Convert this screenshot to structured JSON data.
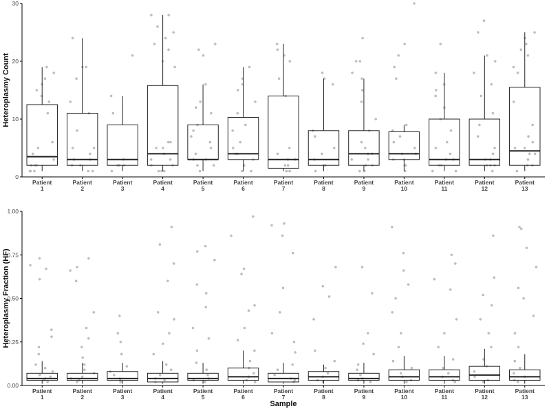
{
  "chart_data": [
    {
      "type": "box",
      "ylabel": "Heteroplasmy Count",
      "xlabel": "",
      "ylim": [
        0,
        30
      ],
      "yticks": [
        0,
        10,
        20,
        30
      ],
      "categories": [
        "Patient\n1",
        "Patient\n2",
        "Patient\n3",
        "Patient\n4",
        "Patient\n5",
        "Patient\n6",
        "Patient\n7",
        "Patient\n8",
        "Patient\n9",
        "Patient\n10",
        "Patient\n11",
        "Patient\n12",
        "Patient\n13"
      ],
      "boxes": [
        {
          "q1": 2,
          "median": 3.5,
          "q3": 12.5,
          "whisker_low": 1,
          "whisker_high": 19,
          "points": [
            1,
            1,
            1,
            2,
            2,
            2,
            3,
            4,
            5,
            6,
            11,
            13,
            14,
            15,
            16,
            17,
            18,
            19
          ]
        },
        {
          "q1": 2,
          "median": 3,
          "q3": 11,
          "whisker_low": 1,
          "whisker_high": 24,
          "points": [
            1,
            1,
            2,
            2,
            3,
            3,
            4,
            5,
            5,
            8,
            11,
            13,
            17,
            19,
            19,
            24
          ]
        },
        {
          "q1": 2,
          "median": 3,
          "q3": 9,
          "whisker_low": 1,
          "whisker_high": 14,
          "points": [
            1,
            2,
            2,
            2,
            3,
            11,
            14,
            21
          ]
        },
        {
          "q1": 2,
          "median": 4,
          "q3": 15.8,
          "whisker_low": 1,
          "whisker_high": 28,
          "points": [
            1,
            1,
            1,
            2,
            2,
            3,
            3,
            4,
            5,
            5,
            6,
            6,
            19,
            20,
            22,
            23,
            24,
            25,
            26,
            28,
            28
          ]
        },
        {
          "q1": 3,
          "median": 3,
          "q3": 9,
          "whisker_low": 1,
          "whisker_high": 16,
          "points": [
            1,
            2,
            2,
            3,
            3,
            4,
            5,
            6,
            7,
            8,
            9,
            11,
            12,
            13,
            16,
            21,
            22,
            23
          ]
        },
        {
          "q1": 3,
          "median": 4,
          "q3": 10.3,
          "whisker_low": 1,
          "whisker_high": 19,
          "points": [
            1,
            1,
            2,
            3,
            4,
            4,
            5,
            6,
            8,
            9,
            11,
            13,
            15,
            16,
            17,
            19
          ]
        },
        {
          "q1": 1.5,
          "median": 3,
          "q3": 14,
          "whisker_low": 1,
          "whisker_high": 23,
          "points": [
            1,
            1,
            2,
            2,
            3,
            3,
            4,
            5,
            14,
            17,
            20,
            21,
            22,
            23
          ]
        },
        {
          "q1": 2,
          "median": 3,
          "q3": 8,
          "whisker_low": 1,
          "whisker_high": 17,
          "points": [
            1,
            2,
            2,
            3,
            4,
            5,
            7,
            8,
            16,
            17,
            18
          ]
        },
        {
          "q1": 2,
          "median": 4,
          "q3": 8,
          "whisker_low": 1,
          "whisker_high": 17,
          "points": [
            1,
            1,
            2,
            2,
            3,
            3,
            4,
            4,
            5,
            6,
            8,
            10,
            13,
            15,
            17,
            18,
            20,
            20,
            24
          ]
        },
        {
          "q1": 3,
          "median": 4,
          "q3": 7.8,
          "whisker_low": 1,
          "whisker_high": 9,
          "points": [
            1,
            2,
            2,
            3,
            3,
            4,
            4,
            5,
            6,
            7,
            8,
            9,
            17,
            19,
            21,
            23,
            30
          ]
        },
        {
          "q1": 2,
          "median": 3,
          "q3": 10,
          "whisker_low": 1,
          "whisker_high": 18,
          "points": [
            1,
            1,
            2,
            2,
            3,
            3,
            4,
            5,
            6,
            8,
            10,
            12,
            14,
            15,
            16,
            18,
            23
          ]
        },
        {
          "q1": 2,
          "median": 3,
          "q3": 10,
          "whisker_low": 1,
          "whisker_high": 21,
          "points": [
            1,
            2,
            2,
            2,
            3,
            3,
            4,
            5,
            7,
            9,
            11,
            14,
            16,
            18,
            20,
            21,
            25,
            27
          ]
        },
        {
          "q1": 2,
          "median": 4.5,
          "q3": 15.5,
          "whisker_low": 1,
          "whisker_high": 25,
          "points": [
            1,
            2,
            2,
            3,
            3,
            4,
            4,
            5,
            5,
            6,
            7,
            9,
            13,
            18,
            19,
            21,
            22,
            23,
            24,
            25
          ]
        }
      ]
    },
    {
      "type": "box",
      "ylabel": "Heteroplasmy Fraction (HF)",
      "xlabel": "Sample",
      "ylim": [
        0,
        1.0
      ],
      "yticks": [
        "0.00",
        "0.25",
        "0.50",
        "0.75",
        "1.00"
      ],
      "categories": [
        "Patient\n1",
        "Patient\n2",
        "Patient\n3",
        "Patient\n4",
        "Patient\n5",
        "Patient\n6",
        "Patient\n7",
        "Patient\n8",
        "Patient\n9",
        "Patient\n10",
        "Patient\n11",
        "Patient\n12",
        "Patient\n13"
      ],
      "boxes": [
        {
          "q1": 0.03,
          "median": 0.04,
          "q3": 0.07,
          "whisker_low": 0.01,
          "whisker_high": 0.14,
          "points": [
            0.02,
            0.03,
            0.04,
            0.05,
            0.06,
            0.08,
            0.1,
            0.12,
            0.18,
            0.22,
            0.28,
            0.32,
            0.61,
            0.67,
            0.69,
            0.73
          ]
        },
        {
          "q1": 0.03,
          "median": 0.04,
          "q3": 0.07,
          "whisker_low": 0.01,
          "whisker_high": 0.13,
          "points": [
            0.02,
            0.03,
            0.04,
            0.05,
            0.07,
            0.09,
            0.12,
            0.16,
            0.22,
            0.27,
            0.33,
            0.42,
            0.6,
            0.66,
            0.68,
            0.73
          ]
        },
        {
          "q1": 0.03,
          "median": 0.04,
          "q3": 0.08,
          "whisker_low": 0.01,
          "whisker_high": 0.13,
          "points": [
            0.02,
            0.03,
            0.04,
            0.06,
            0.08,
            0.11,
            0.18,
            0.25,
            0.3,
            0.4
          ]
        },
        {
          "q1": 0.02,
          "median": 0.04,
          "q3": 0.07,
          "whisker_low": 0.01,
          "whisker_high": 0.14,
          "points": [
            0.02,
            0.03,
            0.04,
            0.06,
            0.09,
            0.12,
            0.18,
            0.24,
            0.3,
            0.38,
            0.42,
            0.6,
            0.7,
            0.81,
            0.91
          ]
        },
        {
          "q1": 0.03,
          "median": 0.04,
          "q3": 0.07,
          "whisker_low": 0.01,
          "whisker_high": 0.13,
          "points": [
            0.02,
            0.03,
            0.04,
            0.06,
            0.09,
            0.13,
            0.2,
            0.27,
            0.33,
            0.45,
            0.53,
            0.58,
            0.72,
            0.77,
            0.8
          ]
        },
        {
          "q1": 0.03,
          "median": 0.05,
          "q3": 0.1,
          "whisker_low": 0.01,
          "whisker_high": 0.2,
          "points": [
            0.02,
            0.03,
            0.05,
            0.07,
            0.1,
            0.14,
            0.2,
            0.26,
            0.33,
            0.43,
            0.46,
            0.64,
            0.67,
            0.86,
            0.97
          ]
        },
        {
          "q1": 0.02,
          "median": 0.04,
          "q3": 0.07,
          "whisker_low": 0.01,
          "whisker_high": 0.13,
          "points": [
            0.02,
            0.03,
            0.04,
            0.06,
            0.09,
            0.12,
            0.19,
            0.25,
            0.3,
            0.42,
            0.56,
            0.76,
            0.86,
            0.92,
            0.93
          ]
        },
        {
          "q1": 0.03,
          "median": 0.05,
          "q3": 0.08,
          "whisker_low": 0.01,
          "whisker_high": 0.12,
          "points": [
            0.02,
            0.03,
            0.05,
            0.07,
            0.1,
            0.14,
            0.2,
            0.38,
            0.51,
            0.57,
            0.68
          ]
        },
        {
          "q1": 0.03,
          "median": 0.04,
          "q3": 0.07,
          "whisker_low": 0.01,
          "whisker_high": 0.13,
          "points": [
            0.02,
            0.03,
            0.04,
            0.06,
            0.09,
            0.12,
            0.18,
            0.24,
            0.3,
            0.53,
            0.68
          ]
        },
        {
          "q1": 0.03,
          "median": 0.05,
          "q3": 0.09,
          "whisker_low": 0.01,
          "whisker_high": 0.17,
          "points": [
            0.02,
            0.03,
            0.05,
            0.07,
            0.1,
            0.14,
            0.22,
            0.3,
            0.42,
            0.5,
            0.58,
            0.66,
            0.76,
            0.91
          ]
        },
        {
          "q1": 0.03,
          "median": 0.05,
          "q3": 0.09,
          "whisker_low": 0.01,
          "whisker_high": 0.17,
          "points": [
            0.02,
            0.03,
            0.05,
            0.07,
            0.1,
            0.15,
            0.22,
            0.3,
            0.38,
            0.55,
            0.61,
            0.7,
            0.75
          ]
        },
        {
          "q1": 0.03,
          "median": 0.06,
          "q3": 0.11,
          "whisker_low": 0.01,
          "whisker_high": 0.21,
          "points": [
            0.02,
            0.03,
            0.05,
            0.08,
            0.11,
            0.15,
            0.22,
            0.3,
            0.38,
            0.46,
            0.52,
            0.62,
            0.86
          ]
        },
        {
          "q1": 0.03,
          "median": 0.05,
          "q3": 0.09,
          "whisker_low": 0.01,
          "whisker_high": 0.18,
          "points": [
            0.02,
            0.03,
            0.05,
            0.07,
            0.1,
            0.14,
            0.22,
            0.3,
            0.4,
            0.5,
            0.56,
            0.68,
            0.79,
            0.9,
            0.91
          ]
        }
      ]
    }
  ],
  "colors": {
    "points": "#bdbdbd",
    "box": "#222222",
    "axis": "#000000"
  }
}
